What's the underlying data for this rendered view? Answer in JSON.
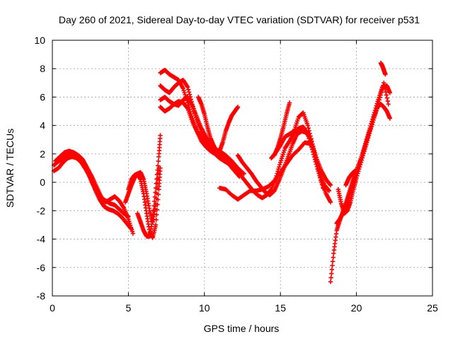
{
  "chart_data": {
    "type": "scatter",
    "title": "Day 260 of 2021, Sidereal Day-to-day VTEC variation (SDTVAR) for receiver p531",
    "xlabel": "GPS time / hours",
    "ylabel": "SDTVAR / TECUs",
    "xlim": [
      0,
      25
    ],
    "ylim": [
      -8,
      10
    ],
    "xticks": [
      0,
      5,
      10,
      15,
      20,
      25
    ],
    "yticks": [
      -8,
      -6,
      -4,
      -2,
      0,
      2,
      4,
      6,
      8,
      10
    ],
    "grid": true,
    "marker": "plus",
    "color": "#ff0000",
    "series": [
      {
        "x": [
          0.1,
          0.3,
          0.6,
          0.9,
          1.2,
          1.5,
          1.8,
          2.0,
          2.3,
          2.6,
          2.9,
          3.2,
          3.5,
          3.8,
          4.1,
          4.4,
          4.7,
          5.0
        ],
        "y": [
          1.2,
          1.4,
          1.6,
          1.9,
          2.0,
          2.0,
          1.8,
          1.4,
          0.8,
          0.0,
          -0.6,
          -1.1,
          -1.3,
          -1.5,
          -1.6,
          -1.9,
          -2.2,
          -2.4
        ]
      },
      {
        "x": [
          0.1,
          0.4,
          0.7,
          1.0,
          1.3,
          1.6,
          1.9,
          2.2,
          2.5,
          2.8,
          3.1,
          3.4,
          3.7,
          4.0,
          4.3,
          4.6,
          4.9,
          5.2
        ],
        "y": [
          0.8,
          1.0,
          1.4,
          1.7,
          1.8,
          1.7,
          1.4,
          0.9,
          0.3,
          -0.5,
          -1.2,
          -1.7,
          -1.9,
          -2.0,
          -2.2,
          -2.5,
          -2.9,
          -3.3
        ]
      },
      {
        "x": [
          0.2,
          0.5,
          0.8,
          1.1,
          1.4,
          1.7,
          2.0,
          2.3,
          2.6,
          2.9,
          3.2,
          3.5,
          3.8,
          4.1,
          4.4,
          4.7,
          5.0,
          5.3
        ],
        "y": [
          1.5,
          1.8,
          2.1,
          2.2,
          2.1,
          1.9,
          1.6,
          1.0,
          0.4,
          -0.3,
          -1.0,
          -1.4,
          -1.2,
          -1.0,
          -1.3,
          -1.8,
          -2.6,
          -3.6
        ]
      },
      {
        "x": [
          4.8,
          5.0,
          5.2,
          5.4,
          5.6,
          5.8,
          6.0,
          6.2,
          6.4,
          6.6,
          6.8,
          7.0
        ],
        "y": [
          -1.4,
          -0.8,
          -0.2,
          0.3,
          0.6,
          0.7,
          0.2,
          -0.8,
          -2.0,
          -2.8,
          -1.5,
          1.0
        ]
      },
      {
        "x": [
          5.0,
          5.2,
          5.4,
          5.6,
          5.8,
          6.0,
          6.2,
          6.4,
          6.6,
          6.8,
          7.0,
          7.1
        ],
        "y": [
          -0.5,
          0.2,
          0.5,
          0.6,
          0.2,
          -0.8,
          -2.2,
          -3.5,
          -3.9,
          -3.0,
          -0.5,
          1.0
        ]
      },
      {
        "x": [
          5.6,
          5.8,
          6.0,
          6.2,
          6.4,
          6.6,
          6.8,
          7.0,
          7.1
        ],
        "y": [
          -2.2,
          -2.8,
          -3.4,
          -3.8,
          -3.8,
          -2.6,
          -0.4,
          1.8,
          3.3
        ]
      },
      {
        "x": [
          7.1,
          7.4,
          7.7,
          8.0,
          8.3,
          8.6,
          8.9,
          9.2,
          9.5,
          9.8,
          10.1,
          10.4,
          10.7,
          11.0,
          11.3,
          11.6,
          11.9,
          12.2
        ],
        "y": [
          7.7,
          7.9,
          7.6,
          7.4,
          7.2,
          6.6,
          5.6,
          4.5,
          3.6,
          2.9,
          2.5,
          2.2,
          2.0,
          1.7,
          1.5,
          1.3,
          1.1,
          0.8
        ]
      },
      {
        "x": [
          7.1,
          7.4,
          7.7,
          8.0,
          8.3,
          8.6,
          8.9,
          9.2,
          9.5,
          9.8,
          10.1,
          10.4,
          10.7,
          11.0,
          11.3,
          11.6,
          11.9,
          12.3
        ],
        "y": [
          6.8,
          6.5,
          6.3,
          6.7,
          7.0,
          7.2,
          6.7,
          5.5,
          4.4,
          3.6,
          3.0,
          2.6,
          2.3,
          2.0,
          1.8,
          1.5,
          1.1,
          0.6
        ]
      },
      {
        "x": [
          7.1,
          7.4,
          7.7,
          8.0,
          8.3,
          8.6,
          8.9,
          9.2,
          9.5,
          9.8,
          10.1,
          10.4,
          10.7,
          11.0,
          11.3,
          11.6,
          11.9,
          12.3
        ],
        "y": [
          5.8,
          6.0,
          5.7,
          5.5,
          5.4,
          5.8,
          6.0,
          5.4,
          4.6,
          3.8,
          3.2,
          2.7,
          2.4,
          2.1,
          1.7,
          1.3,
          0.9,
          0.4
        ]
      },
      {
        "x": [
          7.1,
          7.4,
          7.7,
          8.0,
          8.3,
          8.6,
          8.9,
          9.2,
          9.5,
          9.8,
          10.1,
          10.4,
          10.7,
          11.0,
          11.4,
          11.8,
          12.2,
          12.6
        ],
        "y": [
          5.3,
          5.0,
          5.2,
          5.5,
          5.7,
          5.6,
          5.2,
          4.3,
          3.6,
          3.1,
          2.8,
          2.5,
          2.3,
          2.2,
          1.9,
          1.5,
          1.0,
          0.6
        ]
      },
      {
        "x": [
          9.6,
          9.8,
          10.0,
          10.2,
          10.4,
          10.6,
          10.8,
          11.0,
          11.2,
          11.4,
          11.6,
          11.8,
          12.0,
          12.2
        ],
        "y": [
          6.0,
          5.5,
          4.8,
          3.9,
          3.1,
          2.6,
          2.2,
          2.2,
          2.8,
          3.6,
          4.2,
          4.7,
          5.0,
          5.3
        ]
      },
      {
        "x": [
          11.0,
          11.4,
          11.8,
          12.2,
          12.6,
          13.0,
          13.4,
          13.8,
          14.2,
          14.6,
          15.0,
          15.4,
          15.8,
          16.2,
          16.6,
          17.0,
          17.4,
          17.8
        ],
        "y": [
          -0.4,
          -0.5,
          -0.9,
          -1.2,
          -0.9,
          -0.6,
          -0.6,
          -0.5,
          -0.3,
          0.1,
          0.7,
          1.3,
          1.9,
          2.3,
          2.8,
          2.7,
          1.4,
          -0.4
        ]
      },
      {
        "x": [
          11.7,
          12.0,
          12.3,
          12.6,
          12.9,
          13.2,
          13.5,
          13.8,
          14.1,
          14.4,
          14.7,
          15.0,
          15.3,
          15.6,
          15.9,
          16.2,
          16.5,
          16.8,
          17.1,
          17.4,
          17.7,
          18.0,
          18.3
        ],
        "y": [
          1.6,
          1.1,
          0.6,
          0.2,
          -0.2,
          -0.6,
          -0.9,
          -1.1,
          -0.9,
          -0.5,
          0.3,
          1.4,
          2.4,
          2.9,
          3.5,
          3.8,
          3.9,
          3.4,
          2.3,
          1.1,
          0.0,
          -0.8,
          -1.4
        ]
      },
      {
        "x": [
          12.2,
          12.5,
          12.8,
          13.1,
          13.4,
          13.7,
          14.0,
          14.3,
          14.6,
          14.9,
          15.2,
          15.5,
          15.8,
          16.1,
          16.4,
          16.7,
          17.0,
          17.3,
          17.6,
          17.9,
          18.2
        ],
        "y": [
          1.9,
          1.4,
          1.0,
          0.6,
          0.1,
          -0.3,
          -0.7,
          -0.9,
          -0.6,
          0.1,
          0.9,
          1.8,
          2.7,
          3.4,
          3.6,
          3.5,
          3.0,
          1.8,
          0.6,
          -0.2,
          -0.6
        ]
      },
      {
        "x": [
          14.4,
          14.7,
          15.0,
          15.3,
          15.6,
          15.9,
          16.2,
          16.5,
          16.8,
          17.1,
          17.4,
          17.7,
          18.0,
          18.3
        ],
        "y": [
          1.7,
          2.1,
          2.6,
          3.2,
          3.4,
          3.6,
          4.6,
          4.9,
          4.0,
          2.7,
          1.6,
          0.8,
          0.2,
          -0.2
        ]
      },
      {
        "x": [
          14.6,
          14.8,
          15.0,
          15.2,
          15.4,
          15.6
        ],
        "y": [
          1.9,
          2.4,
          3.1,
          3.9,
          4.8,
          5.6
        ]
      },
      {
        "x": [
          18.3,
          18.5,
          18.7,
          18.9,
          19.1,
          19.3,
          19.5,
          19.7,
          19.9,
          20.2,
          20.5,
          20.8,
          21.1,
          21.4,
          21.6,
          21.8,
          22.0,
          22.2
        ],
        "y": [
          -7.0,
          -5.0,
          -3.4,
          -2.7,
          -2.1,
          -1.5,
          -0.8,
          -0.1,
          0.6,
          1.4,
          2.3,
          3.4,
          4.4,
          5.3,
          5.5,
          5.3,
          5.0,
          4.5
        ]
      },
      {
        "x": [
          18.7,
          18.9,
          19.1,
          19.3,
          19.5,
          19.7,
          19.9,
          20.2,
          20.5,
          20.8,
          21.1,
          21.4,
          21.7,
          22.0,
          22.2
        ],
        "y": [
          -2.9,
          -2.6,
          -2.2,
          -1.6,
          -1.0,
          -0.3,
          0.4,
          1.3,
          2.4,
          3.5,
          4.6,
          5.7,
          6.7,
          6.8,
          6.3
        ]
      },
      {
        "x": [
          18.8,
          19.0,
          19.2,
          19.4,
          19.6,
          19.8,
          20.0,
          20.3,
          20.6,
          20.9,
          21.2,
          21.5,
          21.8,
          22.1
        ],
        "y": [
          -0.5,
          -1.5,
          -2.2,
          -2.0,
          -1.4,
          -0.5,
          0.3,
          1.4,
          2.5,
          3.6,
          4.7,
          5.8,
          7.0,
          5.5
        ]
      },
      {
        "x": [
          19.3,
          19.5,
          19.7,
          19.9
        ],
        "y": [
          -0.2,
          0.3,
          0.6,
          0.8
        ]
      },
      {
        "x": [
          21.6,
          21.7,
          21.8,
          21.9
        ],
        "y": [
          8.4,
          8.2,
          7.9,
          7.6
        ]
      }
    ]
  }
}
